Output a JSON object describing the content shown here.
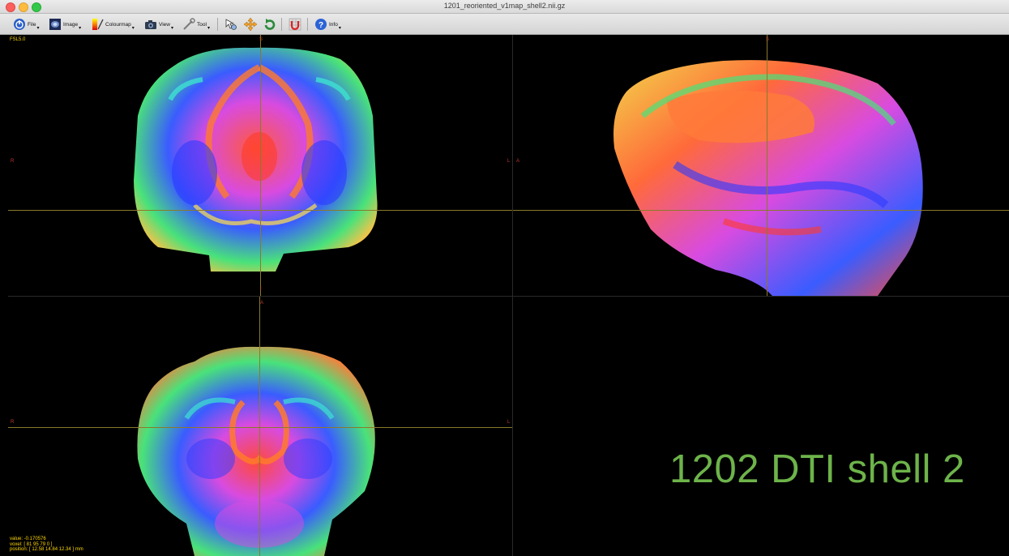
{
  "window": {
    "title": "1201_reoriented_v1map_shell2.nii.gz"
  },
  "toolbar": {
    "file": "File",
    "image": "Image",
    "colourmap": "Colourmap",
    "view": "View",
    "tool": "Tool",
    "info": "Info"
  },
  "viewer": {
    "version": "FSL5.0",
    "coronal": {
      "top": "S",
      "bottom": "I",
      "left": "R",
      "right": "L"
    },
    "sagittal": {
      "top": "S",
      "bottom": "I",
      "left": "A"
    },
    "axial": {
      "top": "A",
      "left": "R",
      "right": "L"
    },
    "status": {
      "value": "value: -0.170576",
      "voxel": "voxel: [ 81 95 79 0 ]",
      "position": "position: [ 12.58 14.84 12.34 ] mm"
    },
    "overlay_label": "1202 DTI shell 2"
  },
  "colors": {
    "crosshair": "#8a7a2a",
    "orientation": "#c0392b",
    "status_text": "#ffd700",
    "overlay_label": "#6db34a"
  }
}
